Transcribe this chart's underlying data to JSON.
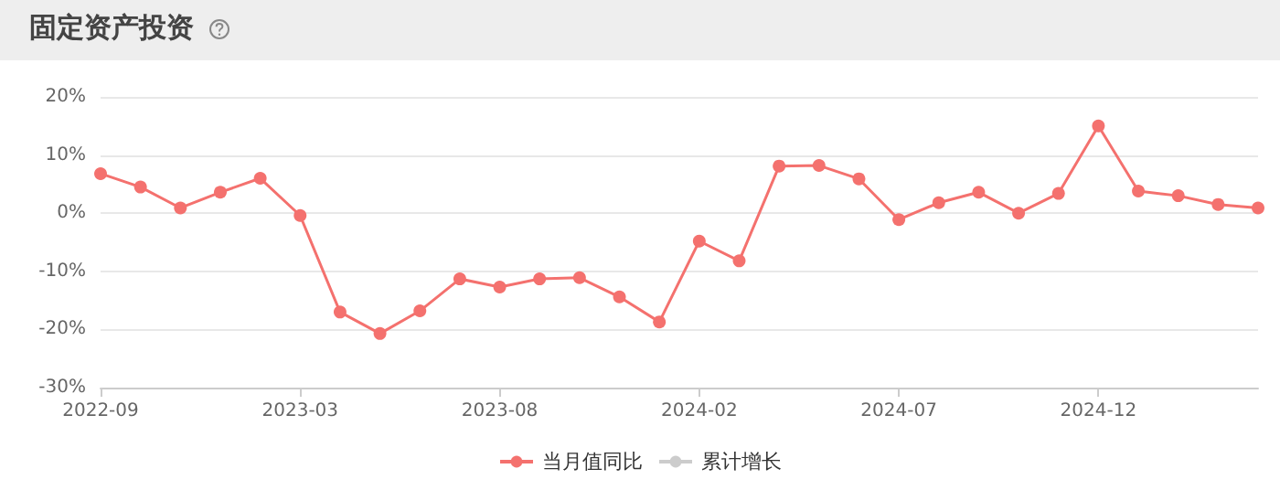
{
  "chart_data": {
    "type": "line",
    "title": "固定资产投资",
    "categories": [
      "2022-09",
      null,
      null,
      null,
      null,
      "2023-03",
      null,
      null,
      null,
      null,
      "2023-08",
      null,
      null,
      null,
      null,
      "2024-02",
      null,
      null,
      null,
      null,
      "2024-07",
      null,
      null,
      null,
      null,
      "2024-12",
      null,
      null,
      null,
      null
    ],
    "series": [
      {
        "name": "当月值同比",
        "color": "#f4716e",
        "values": [
          6.8,
          4.5,
          0.9,
          3.6,
          6.0,
          -0.4,
          -17.0,
          -20.7,
          -16.8,
          -11.3,
          -12.7,
          -11.3,
          -11.1,
          -14.4,
          -18.7,
          -4.8,
          -8.2,
          8.1,
          8.2,
          5.9,
          -1.1,
          1.8,
          3.6,
          0.0,
          3.4,
          15.0,
          3.8,
          3.0,
          1.5,
          0.9
        ]
      },
      {
        "name": "累计增长",
        "color": "#cccccc",
        "values": [
          null,
          null,
          null,
          null,
          null,
          null,
          null,
          null,
          null,
          null,
          null,
          null,
          null,
          null,
          null,
          null,
          null,
          null,
          null,
          null,
          null,
          null,
          null,
          null,
          null,
          null,
          null,
          null,
          null,
          null
        ]
      }
    ],
    "ylim": [
      -30,
      20
    ],
    "yticks": [
      {
        "value": -30,
        "label": "-30%"
      },
      {
        "value": -20,
        "label": "-20%"
      },
      {
        "value": -10,
        "label": "-10%"
      },
      {
        "value": 0,
        "label": "0%"
      },
      {
        "value": 10,
        "label": "10%"
      },
      {
        "value": 20,
        "label": "20%"
      }
    ],
    "grid": "y",
    "legend": "bottom",
    "marker": "circle",
    "line_style": "solid"
  }
}
